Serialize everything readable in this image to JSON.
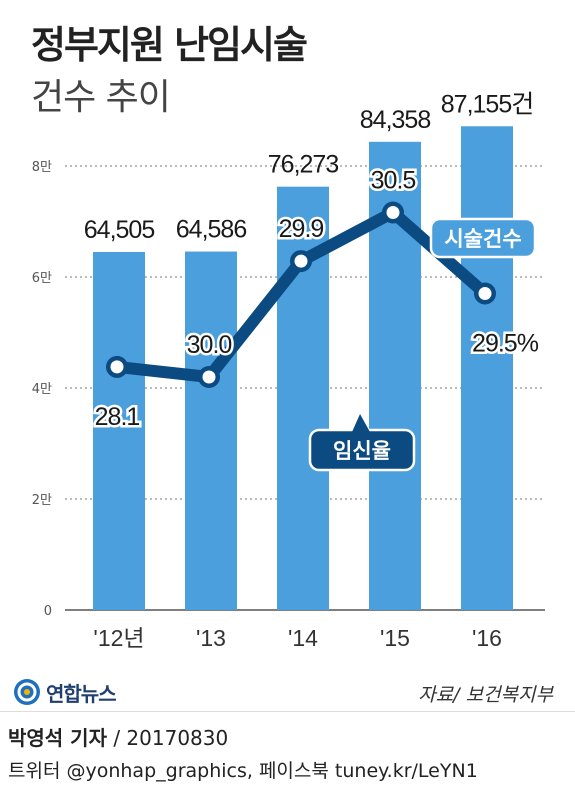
{
  "header": {
    "title": "정부지원 난임시술",
    "subtitle": "건수 추이"
  },
  "chart_data": {
    "type": "bar",
    "categories": [
      "'12년",
      "'13",
      "'14",
      "'15",
      "'16"
    ],
    "y_ticks": [
      "0",
      "2만",
      "4만",
      "6만",
      "8만"
    ],
    "ylim": [
      0,
      90000
    ],
    "grid": true,
    "series": [
      {
        "name": "시술건수",
        "type": "bar",
        "values": [
          64505,
          64586,
          76273,
          84358,
          87155
        ],
        "labels": [
          "64,505",
          "64,586",
          "76,273",
          "84,358",
          "87,155건"
        ],
        "color": "#4a9fdc"
      },
      {
        "name": "임신율",
        "type": "line",
        "values": [
          28.1,
          30.0,
          29.9,
          30.5,
          29.5
        ],
        "labels": [
          "28.1",
          "30.0",
          "29.9",
          "30.5",
          "29.5%"
        ],
        "color": "#0c4a82",
        "range": [
          27,
          31.5
        ]
      }
    ]
  },
  "logo": {
    "text": "연합뉴스",
    "icon": "yonhap-logo-icon"
  },
  "source": "자료/ 보건복지부",
  "footer": {
    "reporter": "박영석 기자",
    "date": " / 20170830",
    "social": "트위터 @yonhap_graphics, 페이스북 tuney.kr/LeYN1"
  }
}
